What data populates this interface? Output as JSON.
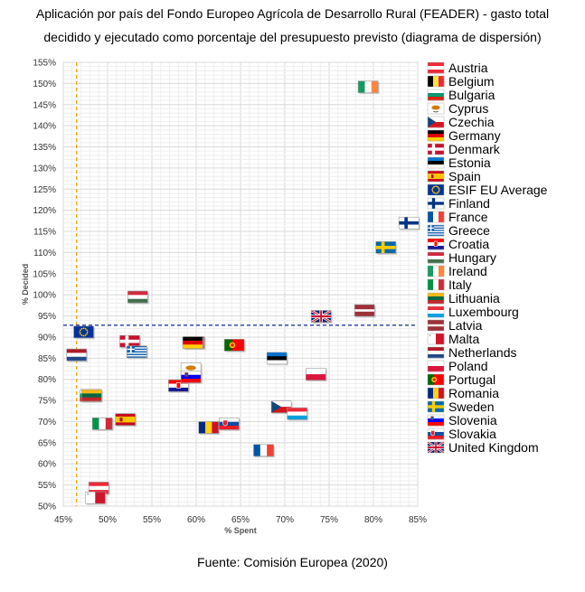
{
  "title_line1": "Aplicación por país del Fondo Europeo Agrícola de Desarrollo Rural (FEADER) - gasto total",
  "title_line2": "decidido y ejecutado como porcentaje del presupuesto previsto (diagrama de dispersión)",
  "source": "Fuente: Comisión Europea (2020)",
  "chart_data": {
    "type": "scatter",
    "xlabel": "% Spent",
    "ylabel": "% Decided",
    "xlim": [
      45,
      85
    ],
    "ylim": [
      50,
      155
    ],
    "x_ticks": [
      45,
      50,
      55,
      60,
      65,
      70,
      75,
      80,
      85
    ],
    "y_ticks": [
      50,
      55,
      60,
      65,
      70,
      75,
      80,
      85,
      90,
      95,
      100,
      105,
      110,
      115,
      120,
      125,
      130,
      135,
      140,
      145,
      150,
      155
    ],
    "tick_suffix": "%",
    "grid": true,
    "legend_position": "right",
    "reference_lines": {
      "eu_average_x": 46.5,
      "eu_average_y": 92.8
    },
    "points": [
      {
        "name": "Austria",
        "x": 49,
        "y": 54.3,
        "flag": "austria"
      },
      {
        "name": "Belgium",
        "x": 59.8,
        "y": 88.7,
        "flag": "belgium"
      },
      {
        "name": "Bulgaria",
        "x": 48,
        "y": 76.2,
        "flag": "bulgaria"
      },
      {
        "name": "Cyprus",
        "x": 59.4,
        "y": 82.5,
        "flag": "cyprus"
      },
      {
        "name": "Czechia",
        "x": 69.6,
        "y": 73.5,
        "flag": "czechia"
      },
      {
        "name": "Germany",
        "x": 59.6,
        "y": 88.7,
        "flag": "germany"
      },
      {
        "name": "Denmark",
        "x": 52.5,
        "y": 89,
        "flag": "denmark"
      },
      {
        "name": "Estonia",
        "x": 69.1,
        "y": 85,
        "flag": "estonia"
      },
      {
        "name": "Spain",
        "x": 52,
        "y": 70.5,
        "flag": "spain"
      },
      {
        "name": "ESIF EU Average",
        "x": 47.3,
        "y": 91.2,
        "flag": "eu"
      },
      {
        "name": "Finland",
        "x": 84,
        "y": 117,
        "flag": "finland"
      },
      {
        "name": "France",
        "x": 67.6,
        "y": 63.2,
        "flag": "france"
      },
      {
        "name": "Greece",
        "x": 53.3,
        "y": 86.5,
        "flag": "greece"
      },
      {
        "name": "Croatia",
        "x": 58,
        "y": 78.5,
        "flag": "croatia"
      },
      {
        "name": "Hungary",
        "x": 53.4,
        "y": 99.5,
        "flag": "hungary"
      },
      {
        "name": "Ireland",
        "x": 79.4,
        "y": 149.2,
        "flag": "ireland"
      },
      {
        "name": "Italy",
        "x": 49.4,
        "y": 69.5,
        "flag": "italy"
      },
      {
        "name": "Lithuania",
        "x": 48.2,
        "y": 76.2,
        "flag": "lithuania"
      },
      {
        "name": "Luxembourg",
        "x": 71.4,
        "y": 71.9,
        "flag": "luxembourg"
      },
      {
        "name": "Latvia",
        "x": 79,
        "y": 96.3,
        "flag": "latvia"
      },
      {
        "name": "Malta",
        "x": 48.6,
        "y": 52,
        "flag": "malta"
      },
      {
        "name": "Netherlands",
        "x": 46.5,
        "y": 85.8,
        "flag": "netherlands"
      },
      {
        "name": "Poland",
        "x": 73.5,
        "y": 81.2,
        "flag": "poland"
      },
      {
        "name": "Portugal",
        "x": 64.3,
        "y": 88.1,
        "flag": "portugal"
      },
      {
        "name": "Romania",
        "x": 61.4,
        "y": 68.6,
        "flag": "romania"
      },
      {
        "name": "Sweden",
        "x": 81.4,
        "y": 111.2,
        "flag": "sweden"
      },
      {
        "name": "Slovenia",
        "x": 59.4,
        "y": 80.6,
        "flag": "slovenia"
      },
      {
        "name": "Slovakia",
        "x": 63.7,
        "y": 69.5,
        "flag": "slovakia"
      },
      {
        "name": "United Kingdom",
        "x": 74.1,
        "y": 94.9,
        "flag": "uk"
      }
    ],
    "legend": [
      "Austria",
      "Belgium",
      "Bulgaria",
      "Cyprus",
      "Czechia",
      "Germany",
      "Denmark",
      "Estonia",
      "Spain",
      "ESIF EU Average",
      "Finland",
      "France",
      "Greece",
      "Croatia",
      "Hungary",
      "Ireland",
      "Italy",
      "Lithuania",
      "Luxembourg",
      "Latvia",
      "Malta",
      "Netherlands",
      "Poland",
      "Portugal",
      "Romania",
      "Sweden",
      "Slovenia",
      "Slovakia",
      "United Kingdom"
    ]
  }
}
